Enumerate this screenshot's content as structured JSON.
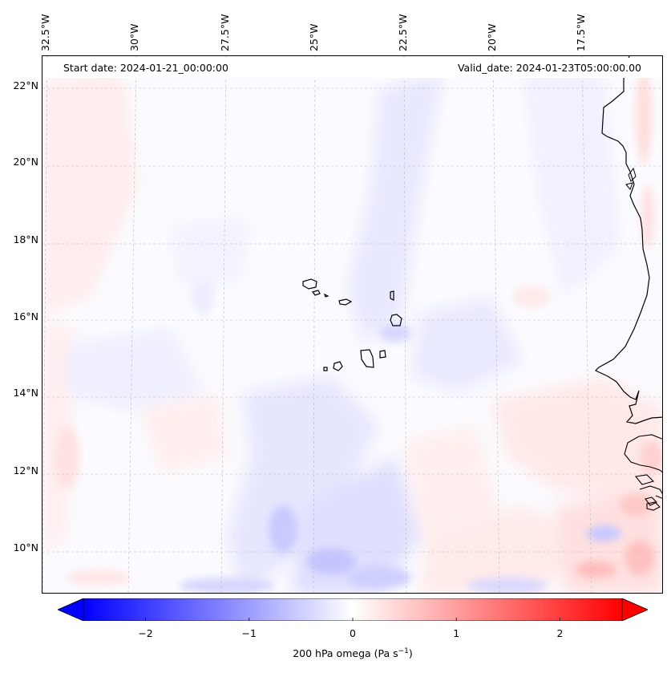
{
  "header": {
    "start_date": "Start date: 2024-01-21_00:00:00",
    "valid_date": "Valid_date: 2024-01-23T05:00:00.00"
  },
  "map": {
    "lon_ticks": [
      "32.5°W",
      "30°W",
      "27.5°W",
      "25°W",
      "22.5°W",
      "20°W",
      "17.5°W"
    ],
    "lat_ticks": [
      "22°N",
      "20°N",
      "18°N",
      "16°N",
      "14°N",
      "12°N",
      "10°N"
    ],
    "extent": {
      "lon_min": -32.7,
      "lon_max": -15.0,
      "lat_min": 8.9,
      "lat_max": 22.8
    },
    "features": [
      "Cape Verde islands",
      "West African coastline"
    ]
  },
  "colorbar": {
    "ticks": [
      "−2",
      "−1",
      "0",
      "1",
      "2"
    ],
    "tick_values": [
      -2,
      -1,
      0,
      1,
      2
    ],
    "range": [
      -2.6,
      2.6
    ],
    "extend": "both",
    "colormap": "bwr",
    "colors": {
      "low": "#0000ff",
      "mid": "#ffffff",
      "high": "#ff0000"
    },
    "label_main": "200 hPa omega (Pa s",
    "label_exp": "−1",
    "label_close": ")"
  }
}
